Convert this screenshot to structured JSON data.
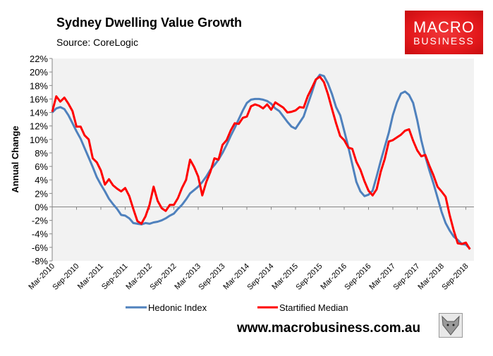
{
  "header": {
    "title": "Sydney Dwelling Value Growth",
    "source": "Source: CoreLogic"
  },
  "logo": {
    "line1": "MACRO",
    "line2": "BUSINESS",
    "color": "#e4191c"
  },
  "footer": {
    "website": "www.macrobusiness.com.au",
    "icon": "wolf-icon"
  },
  "chart_data": {
    "type": "line",
    "title": "Sydney Dwelling Value Growth",
    "xlabel": "",
    "ylabel": "Annual Change",
    "ylim": [
      -8,
      22
    ],
    "y_ticks": [
      "-8%",
      "-6%",
      "-4%",
      "-2%",
      "0%",
      "2%",
      "4%",
      "6%",
      "8%",
      "10%",
      "12%",
      "14%",
      "16%",
      "18%",
      "20%",
      "22%"
    ],
    "x_tick_labels": [
      "Mar-2010",
      "Sep-2010",
      "Mar-2011",
      "Sep-2011",
      "Mar-2012",
      "Sep-2012",
      "Mar-2013",
      "Sep-2013",
      "Mar-2014",
      "Sep-2014",
      "Mar-2015",
      "Sep-2015",
      "Mar-2016",
      "Sep-2016",
      "Mar-2017",
      "Sep-2017",
      "Mar-2018",
      "Sep-2018"
    ],
    "grid": false,
    "legend": "bottom",
    "x": [
      "2010-03",
      "2010-04",
      "2010-05",
      "2010-06",
      "2010-07",
      "2010-08",
      "2010-09",
      "2010-10",
      "2010-11",
      "2010-12",
      "2011-01",
      "2011-02",
      "2011-03",
      "2011-04",
      "2011-05",
      "2011-06",
      "2011-07",
      "2011-08",
      "2011-09",
      "2011-10",
      "2011-11",
      "2011-12",
      "2012-01",
      "2012-02",
      "2012-03",
      "2012-04",
      "2012-05",
      "2012-06",
      "2012-07",
      "2012-08",
      "2012-09",
      "2012-10",
      "2012-11",
      "2012-12",
      "2013-01",
      "2013-02",
      "2013-03",
      "2013-04",
      "2013-05",
      "2013-06",
      "2013-07",
      "2013-08",
      "2013-09",
      "2013-10",
      "2013-11",
      "2013-12",
      "2014-01",
      "2014-02",
      "2014-03",
      "2014-04",
      "2014-05",
      "2014-06",
      "2014-07",
      "2014-08",
      "2014-09",
      "2014-10",
      "2014-11",
      "2014-12",
      "2015-01",
      "2015-02",
      "2015-03",
      "2015-04",
      "2015-05",
      "2015-06",
      "2015-07",
      "2015-08",
      "2015-09",
      "2015-10",
      "2015-11",
      "2015-12",
      "2016-01",
      "2016-02",
      "2016-03",
      "2016-04",
      "2016-05",
      "2016-06",
      "2016-07",
      "2016-08",
      "2016-09",
      "2016-10",
      "2016-11",
      "2016-12",
      "2017-01",
      "2017-02",
      "2017-03",
      "2017-04",
      "2017-05",
      "2017-06",
      "2017-07",
      "2017-08",
      "2017-09",
      "2017-10",
      "2017-11",
      "2017-12",
      "2018-01",
      "2018-02",
      "2018-03",
      "2018-04",
      "2018-05",
      "2018-06",
      "2018-07",
      "2018-08",
      "2018-09",
      "2018-10"
    ],
    "series": [
      {
        "name": "Hedonic Index",
        "color": "#4f81bd",
        "values": [
          14.0,
          14.6,
          14.8,
          14.5,
          13.6,
          12.4,
          11.2,
          10.1,
          8.7,
          7.3,
          5.9,
          4.4,
          3.3,
          2.3,
          1.2,
          0.4,
          -0.3,
          -1.2,
          -1.3,
          -1.7,
          -2.4,
          -2.5,
          -2.6,
          -2.4,
          -2.5,
          -2.3,
          -2.2,
          -2.0,
          -1.7,
          -1.3,
          -1.0,
          -0.3,
          0.3,
          1.1,
          2.0,
          2.5,
          3.0,
          3.7,
          4.5,
          5.5,
          6.2,
          7.0,
          8.0,
          9.2,
          10.5,
          11.7,
          13.0,
          14.3,
          15.4,
          15.9,
          16.0,
          16.0,
          15.9,
          15.7,
          15.3,
          14.6,
          14.2,
          13.4,
          12.6,
          11.9,
          11.6,
          12.5,
          13.4,
          15.2,
          16.9,
          18.8,
          19.6,
          19.4,
          18.3,
          16.7,
          14.8,
          13.6,
          11.3,
          8.9,
          6.3,
          3.7,
          2.3,
          1.6,
          1.8,
          2.4,
          4.5,
          6.8,
          8.9,
          11.0,
          13.6,
          15.5,
          16.8,
          17.1,
          16.6,
          15.4,
          12.9,
          9.9,
          7.5,
          5.4,
          3.5,
          1.4,
          -0.7,
          -2.4,
          -3.5,
          -4.4,
          -4.9,
          -5.5,
          -5.6,
          -6.2
        ]
      },
      {
        "name": "Startified Median",
        "color": "#ff0000",
        "values": [
          14.1,
          16.4,
          15.6,
          16.2,
          15.3,
          14.2,
          11.9,
          11.9,
          10.6,
          10.0,
          7.2,
          6.6,
          5.4,
          3.3,
          4.1,
          3.2,
          2.7,
          2.3,
          2.8,
          1.6,
          -0.3,
          -2.1,
          -2.5,
          -1.4,
          0.3,
          3.0,
          0.9,
          -0.2,
          -0.6,
          0.3,
          0.3,
          1.3,
          2.8,
          4.0,
          7.0,
          5.9,
          4.5,
          1.7,
          3.7,
          5.2,
          7.2,
          7.0,
          9.2,
          9.9,
          11.3,
          12.4,
          12.3,
          13.2,
          13.4,
          14.9,
          15.2,
          15.0,
          14.6,
          15.2,
          14.4,
          15.5,
          15.1,
          14.7,
          14.0,
          14.1,
          14.3,
          14.8,
          14.7,
          16.4,
          17.6,
          18.9,
          19.3,
          18.5,
          16.7,
          14.5,
          12.4,
          10.5,
          9.9,
          8.8,
          8.6,
          6.7,
          5.5,
          3.8,
          2.4,
          1.7,
          2.6,
          5.2,
          7.1,
          9.7,
          9.9,
          10.3,
          10.7,
          11.3,
          11.5,
          9.8,
          8.4,
          7.5,
          7.7,
          6.1,
          4.7,
          3.0,
          2.3,
          1.5,
          -1.2,
          -3.5,
          -5.4,
          -5.5,
          -5.3,
          -6.3
        ]
      }
    ]
  }
}
